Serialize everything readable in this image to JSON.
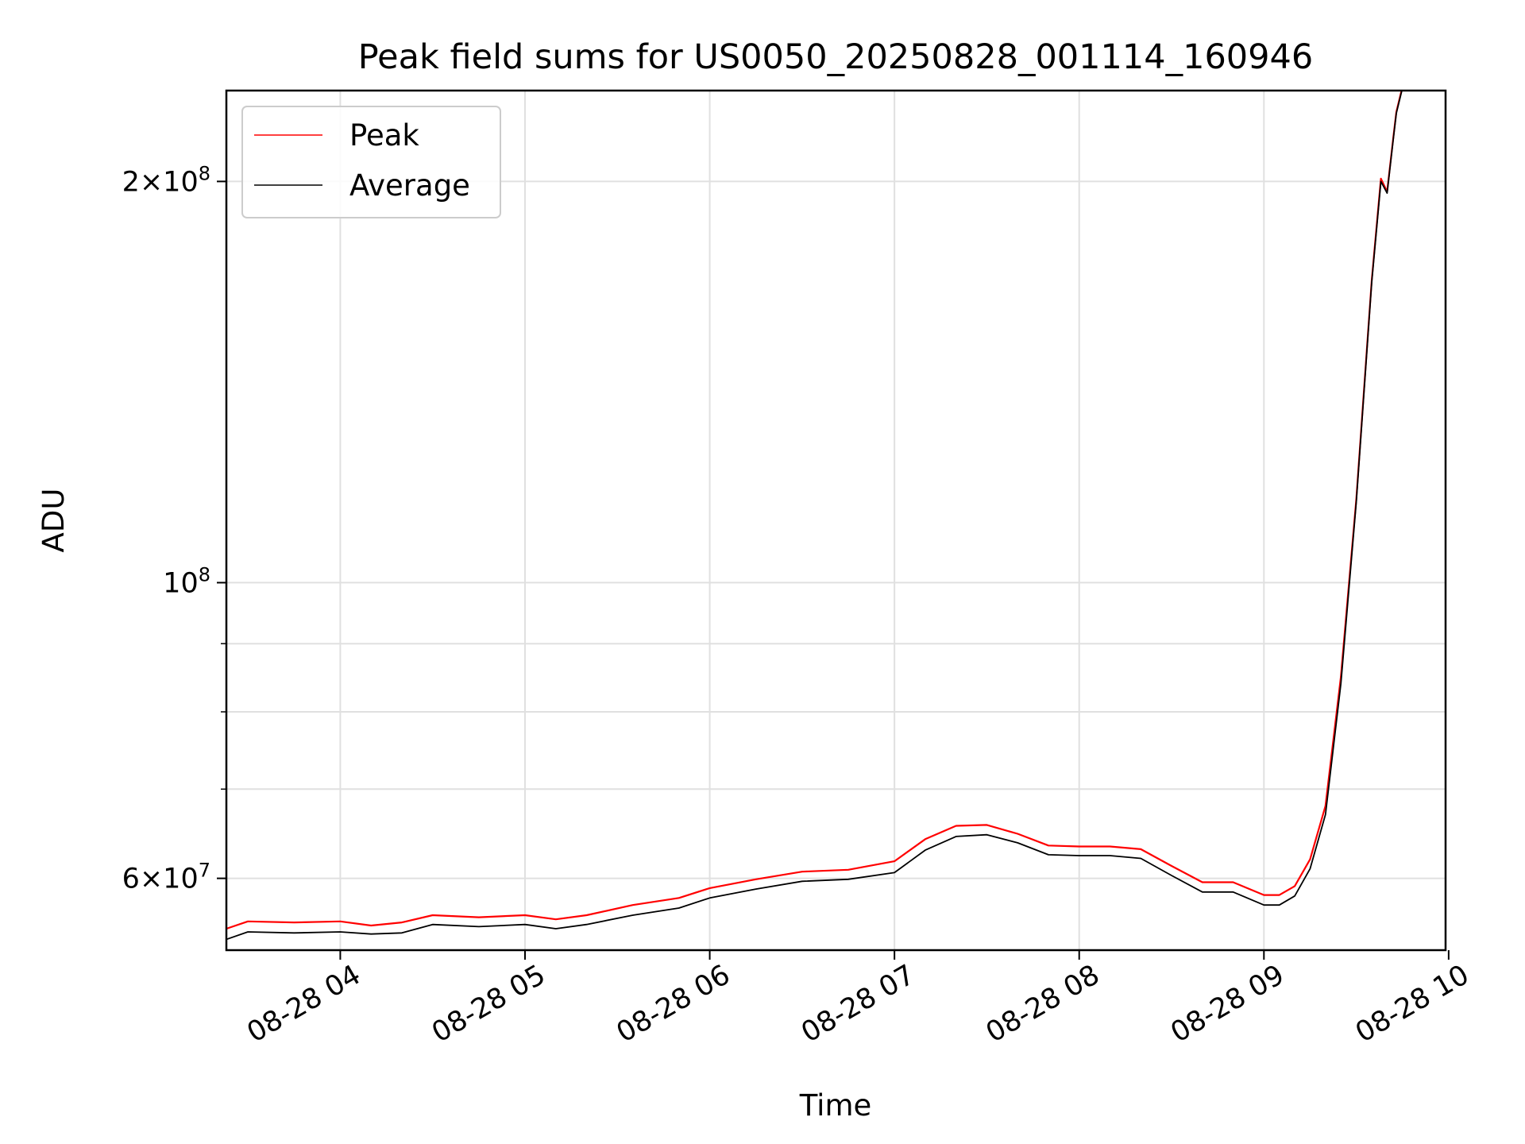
{
  "chart_data": {
    "type": "line",
    "title": "Peak field sums for US0050_20250828_001114_160946",
    "xlabel": "Time",
    "ylabel": "ADU",
    "y_scale": "log",
    "x_axis": "datetime",
    "xlim": [
      "2025-08-28T03:23:00",
      "2025-08-28T09:59:00"
    ],
    "ylim": [
      53000000,
      234000000
    ],
    "x_ticks": [
      {
        "value": "2025-08-28T04:00:00",
        "label": "08-28 04"
      },
      {
        "value": "2025-08-28T05:00:00",
        "label": "08-28 05"
      },
      {
        "value": "2025-08-28T06:00:00",
        "label": "08-28 06"
      },
      {
        "value": "2025-08-28T07:00:00",
        "label": "08-28 07"
      },
      {
        "value": "2025-08-28T08:00:00",
        "label": "08-28 08"
      },
      {
        "value": "2025-08-28T09:00:00",
        "label": "08-28 09"
      },
      {
        "value": "2025-08-28T10:00:00",
        "label": "08-28 10"
      }
    ],
    "y_ticks_major": [
      {
        "value": 60000000,
        "base": "6",
        "exp": "7"
      },
      {
        "value": 100000000,
        "base": "",
        "exp": "8"
      },
      {
        "value": 200000000,
        "base": "2",
        "exp": "8"
      }
    ],
    "y_ticks_minor": [
      70000000,
      80000000,
      90000000
    ],
    "grid": true,
    "legend": "upper left",
    "colors": {
      "Peak": "#ff0000",
      "Average": "#000000",
      "grid": "#e0e0e0"
    },
    "series": [
      {
        "name": "Average",
        "x": [
          "2025-08-28T03:23:00",
          "2025-08-28T03:30:00",
          "2025-08-28T03:45:00",
          "2025-08-28T04:00:00",
          "2025-08-28T04:10:00",
          "2025-08-28T04:20:00",
          "2025-08-28T04:30:00",
          "2025-08-28T04:45:00",
          "2025-08-28T05:00:00",
          "2025-08-28T05:10:00",
          "2025-08-28T05:20:00",
          "2025-08-28T05:35:00",
          "2025-08-28T05:50:00",
          "2025-08-28T06:00:00",
          "2025-08-28T06:15:00",
          "2025-08-28T06:30:00",
          "2025-08-28T06:45:00",
          "2025-08-28T07:00:00",
          "2025-08-28T07:10:00",
          "2025-08-28T07:20:00",
          "2025-08-28T07:30:00",
          "2025-08-28T07:40:00",
          "2025-08-28T07:50:00",
          "2025-08-28T08:00:00",
          "2025-08-28T08:10:00",
          "2025-08-28T08:20:00",
          "2025-08-28T08:30:00",
          "2025-08-28T08:40:00",
          "2025-08-28T08:50:00",
          "2025-08-28T09:00:00",
          "2025-08-28T09:05:00",
          "2025-08-28T09:10:00",
          "2025-08-28T09:15:00",
          "2025-08-28T09:20:00",
          "2025-08-28T09:25:00",
          "2025-08-28T09:30:00",
          "2025-08-28T09:35:00",
          "2025-08-28T09:38:00",
          "2025-08-28T09:40:00",
          "2025-08-28T09:42:00",
          "2025-08-28T09:43:00",
          "2025-08-28T09:45:00"
        ],
        "y": [
          54000000,
          54700000,
          54600000,
          54700000,
          54500000,
          54600000,
          55400000,
          55200000,
          55400000,
          55000000,
          55400000,
          56300000,
          57000000,
          58000000,
          58900000,
          59700000,
          59900000,
          60600000,
          63000000,
          64500000,
          64700000,
          63800000,
          62500000,
          62400000,
          62400000,
          62100000,
          60300000,
          58600000,
          58600000,
          57300000,
          57300000,
          58200000,
          61000000,
          67000000,
          84000000,
          115000000,
          168000000,
          200000000,
          196000000,
          215000000,
          225000000,
          235000000
        ]
      },
      {
        "name": "Peak",
        "x": [
          "2025-08-28T03:23:00",
          "2025-08-28T03:30:00",
          "2025-08-28T03:45:00",
          "2025-08-28T04:00:00",
          "2025-08-28T04:10:00",
          "2025-08-28T04:20:00",
          "2025-08-28T04:30:00",
          "2025-08-28T04:45:00",
          "2025-08-28T05:00:00",
          "2025-08-28T05:10:00",
          "2025-08-28T05:20:00",
          "2025-08-28T05:35:00",
          "2025-08-28T05:50:00",
          "2025-08-28T06:00:00",
          "2025-08-28T06:15:00",
          "2025-08-28T06:30:00",
          "2025-08-28T06:45:00",
          "2025-08-28T07:00:00",
          "2025-08-28T07:10:00",
          "2025-08-28T07:20:00",
          "2025-08-28T07:30:00",
          "2025-08-28T07:40:00",
          "2025-08-28T07:50:00",
          "2025-08-28T08:00:00",
          "2025-08-28T08:10:00",
          "2025-08-28T08:20:00",
          "2025-08-28T08:30:00",
          "2025-08-28T08:40:00",
          "2025-08-28T08:50:00",
          "2025-08-28T09:00:00",
          "2025-08-28T09:05:00",
          "2025-08-28T09:10:00",
          "2025-08-28T09:15:00",
          "2025-08-28T09:20:00",
          "2025-08-28T09:25:00",
          "2025-08-28T09:30:00",
          "2025-08-28T09:35:00",
          "2025-08-28T09:38:00",
          "2025-08-28T09:40:00",
          "2025-08-28T09:42:00",
          "2025-08-28T09:43:00",
          "2025-08-28T09:45:00"
        ],
        "y": [
          55000000,
          55700000,
          55600000,
          55700000,
          55300000,
          55600000,
          56300000,
          56100000,
          56300000,
          55900000,
          56300000,
          57300000,
          58000000,
          59000000,
          59900000,
          60700000,
          60900000,
          61800000,
          64200000,
          65700000,
          65800000,
          64800000,
          63500000,
          63400000,
          63400000,
          63100000,
          61300000,
          59600000,
          59600000,
          58300000,
          58300000,
          59200000,
          62000000,
          68000000,
          85000000,
          115500000,
          168500000,
          201000000,
          196500000,
          215500000,
          225500000,
          235500000
        ]
      }
    ]
  }
}
